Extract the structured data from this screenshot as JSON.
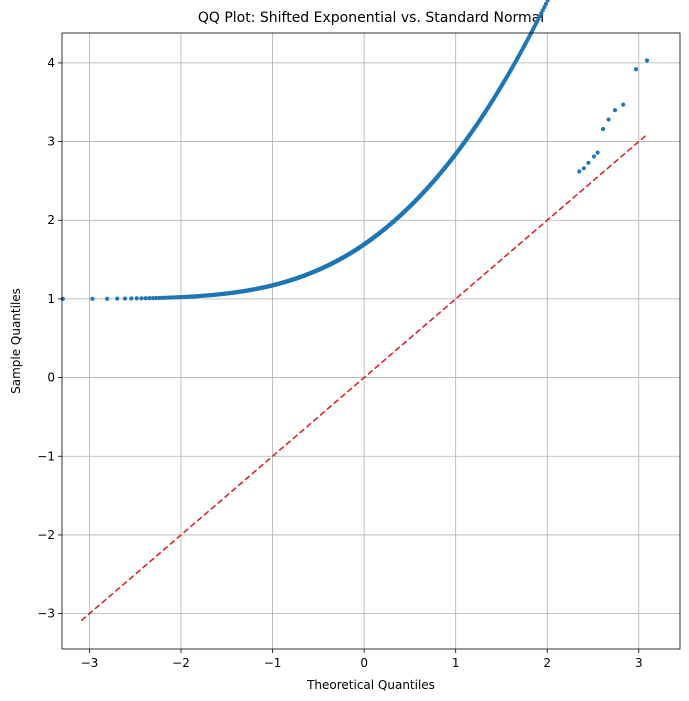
{
  "chart_data": {
    "type": "scatter",
    "title": "QQ Plot: Shifted Exponential vs. Standard Normal",
    "xlabel": "Theoretical Quantiles",
    "ylabel": "Sample Quantiles",
    "xlim": [
      -3.3,
      3.45
    ],
    "ylim": [
      -3.45,
      4.38
    ],
    "xticks": [
      -3,
      -2,
      -1,
      0,
      1,
      2,
      3
    ],
    "yticks": [
      -3,
      -2,
      -1,
      0,
      1,
      2,
      3,
      4
    ],
    "grid": true,
    "legend": "none",
    "sample_shift": 1,
    "sample_count": 1000,
    "point_color": "#1f77b4",
    "reference_line": {
      "x": [
        -3.09,
        3.09
      ],
      "y": [
        -3.09,
        3.09
      ],
      "color": "#d62728",
      "style": "dashed"
    },
    "tail_points": [
      {
        "x": 2.35,
        "y": 2.62
      },
      {
        "x": 2.4,
        "y": 2.66
      },
      {
        "x": 2.45,
        "y": 2.73
      },
      {
        "x": 2.51,
        "y": 2.81
      },
      {
        "x": 2.55,
        "y": 2.86
      },
      {
        "x": 2.61,
        "y": 3.16
      },
      {
        "x": 2.67,
        "y": 3.28
      },
      {
        "x": 2.74,
        "y": 3.4
      },
      {
        "x": 2.83,
        "y": 3.47
      },
      {
        "x": 2.97,
        "y": 3.92
      },
      {
        "x": 3.09,
        "y": 4.03
      }
    ]
  }
}
